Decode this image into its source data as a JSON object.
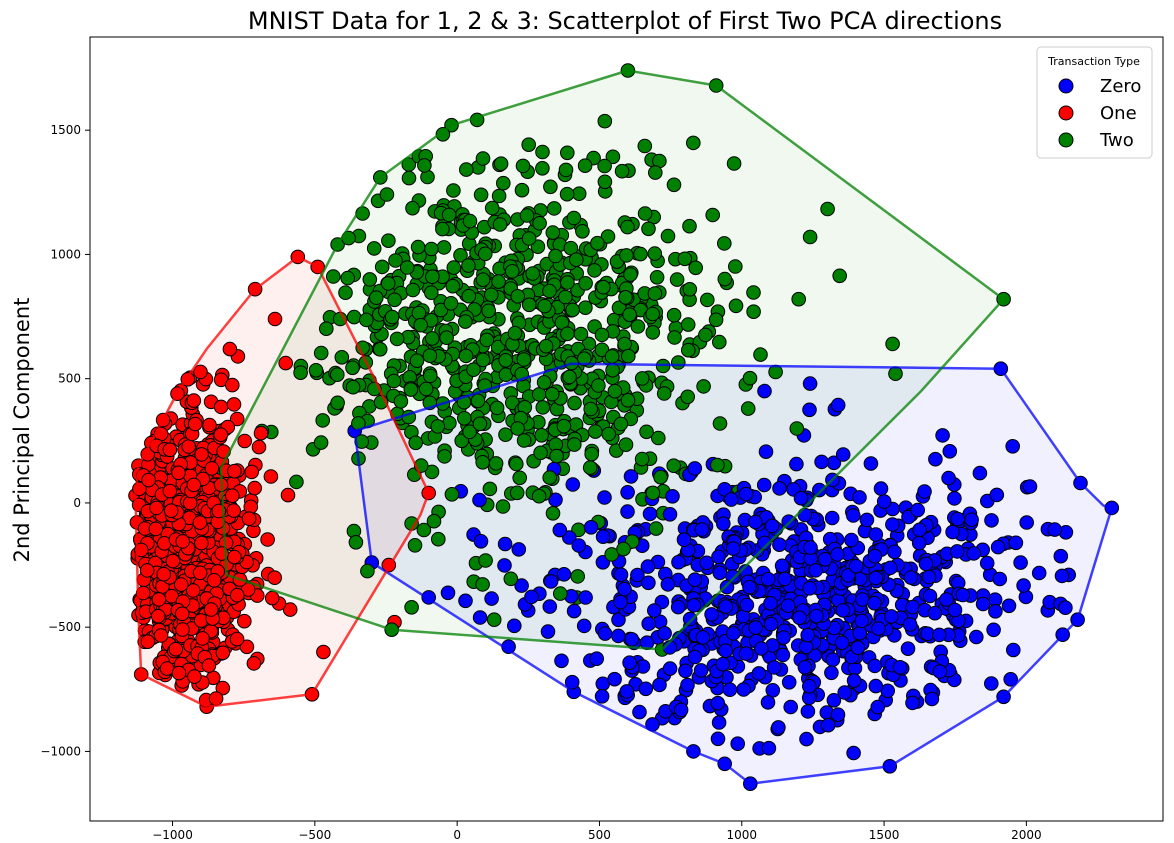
{
  "chart_data": {
    "type": "scatter",
    "title": "MNIST Data for 1, 2 & 3: Scatterplot of First Two PCA directions",
    "xlabel": "",
    "ylabel": "2nd Principal Component",
    "xlim": [
      -1290,
      2480
    ],
    "ylim": [
      -1280,
      1875
    ],
    "x_ticks": [
      -1000,
      -500,
      0,
      500,
      1000,
      1500,
      2000
    ],
    "y_ticks": [
      -1000,
      -500,
      0,
      500,
      1000,
      1500
    ],
    "x_tick_labels": [
      "−1000",
      "−500",
      "0",
      "500",
      "1000",
      "1500",
      "2000"
    ],
    "y_tick_labels": [
      "−1000",
      "−500",
      "0",
      "500",
      "1000",
      "1500"
    ],
    "grid": false,
    "legend": {
      "title": "Transaction Type",
      "placement": "top-right"
    },
    "series": [
      {
        "name": "Zero",
        "color": "#0000ff",
        "hull": [
          [
            -360,
            290
          ],
          [
            400,
            560
          ],
          [
            1910,
            540
          ],
          [
            2190,
            80
          ],
          [
            2270,
            -10
          ],
          [
            2300,
            -20
          ],
          [
            2180,
            -470
          ],
          [
            1920,
            -780
          ],
          [
            1520,
            -1060
          ],
          [
            1030,
            -1130
          ],
          [
            940,
            -1050
          ],
          [
            830,
            -1000
          ],
          [
            410,
            -760
          ],
          [
            -300,
            -240
          ],
          [
            -360,
            290
          ]
        ],
        "points": [
          [
            -360,
            290
          ],
          [
            410,
            -760
          ],
          [
            830,
            -1000
          ],
          [
            940,
            -1050
          ],
          [
            1030,
            -1130
          ],
          [
            1520,
            -1060
          ],
          [
            1920,
            -780
          ],
          [
            2180,
            -470
          ],
          [
            2300,
            -20
          ],
          [
            2190,
            80
          ],
          [
            1910,
            540
          ],
          [
            1240,
            480
          ],
          [
            1080,
            450
          ],
          [
            480,
            130
          ],
          [
            -100,
            -380
          ],
          [
            -300,
            -240
          ]
        ],
        "cluster": {
          "center": [
            1200,
            -380
          ],
          "spread": [
            430,
            260
          ],
          "count": 800
        }
      },
      {
        "name": "One",
        "color": "#ff0000",
        "hull": [
          [
            -1120,
            150
          ],
          [
            -980,
            450
          ],
          [
            -880,
            620
          ],
          [
            -710,
            860
          ],
          [
            -560,
            990
          ],
          [
            -490,
            950
          ],
          [
            -290,
            500
          ],
          [
            -100,
            40
          ],
          [
            -130,
            -50
          ],
          [
            -510,
            -770
          ],
          [
            -880,
            -820
          ],
          [
            -1110,
            -690
          ],
          [
            -1120,
            -450
          ],
          [
            -1130,
            30
          ],
          [
            -1120,
            150
          ]
        ],
        "points": [
          [
            -1120,
            150
          ],
          [
            -710,
            860
          ],
          [
            -560,
            990
          ],
          [
            -490,
            950
          ],
          [
            -100,
            40
          ],
          [
            -510,
            -770
          ],
          [
            -880,
            -820
          ],
          [
            -1110,
            -690
          ],
          [
            -1130,
            30
          ],
          [
            -240,
            -250
          ],
          [
            -470,
            -600
          ],
          [
            -220,
            -480
          ],
          [
            -640,
            740
          ]
        ],
        "cluster": {
          "center": [
            -960,
            -160
          ],
          "spread": [
            120,
            300
          ],
          "count": 800
        }
      },
      {
        "name": "Two",
        "color": "#008000",
        "hull": [
          [
            -830,
            140
          ],
          [
            -420,
            1040
          ],
          [
            -270,
            1310
          ],
          [
            -20,
            1520
          ],
          [
            600,
            1740
          ],
          [
            910,
            1680
          ],
          [
            1920,
            820
          ],
          [
            1630,
            450
          ],
          [
            720,
            -590
          ],
          [
            -230,
            -510
          ],
          [
            -810,
            -290
          ],
          [
            -830,
            140
          ]
        ],
        "points": [
          [
            -830,
            140
          ],
          [
            -420,
            1040
          ],
          [
            -270,
            1310
          ],
          [
            -20,
            1520
          ],
          [
            600,
            1740
          ],
          [
            910,
            1680
          ],
          [
            1920,
            820
          ],
          [
            1530,
            640
          ],
          [
            1540,
            520
          ],
          [
            1240,
            1070
          ],
          [
            1200,
            820
          ],
          [
            720,
            -590
          ],
          [
            -230,
            -510
          ],
          [
            -810,
            -290
          ],
          [
            -160,
            -420
          ],
          [
            130,
            -470
          ]
        ],
        "cluster": {
          "center": [
            180,
            670
          ],
          "spread": [
            380,
            370
          ],
          "count": 800
        }
      }
    ]
  }
}
